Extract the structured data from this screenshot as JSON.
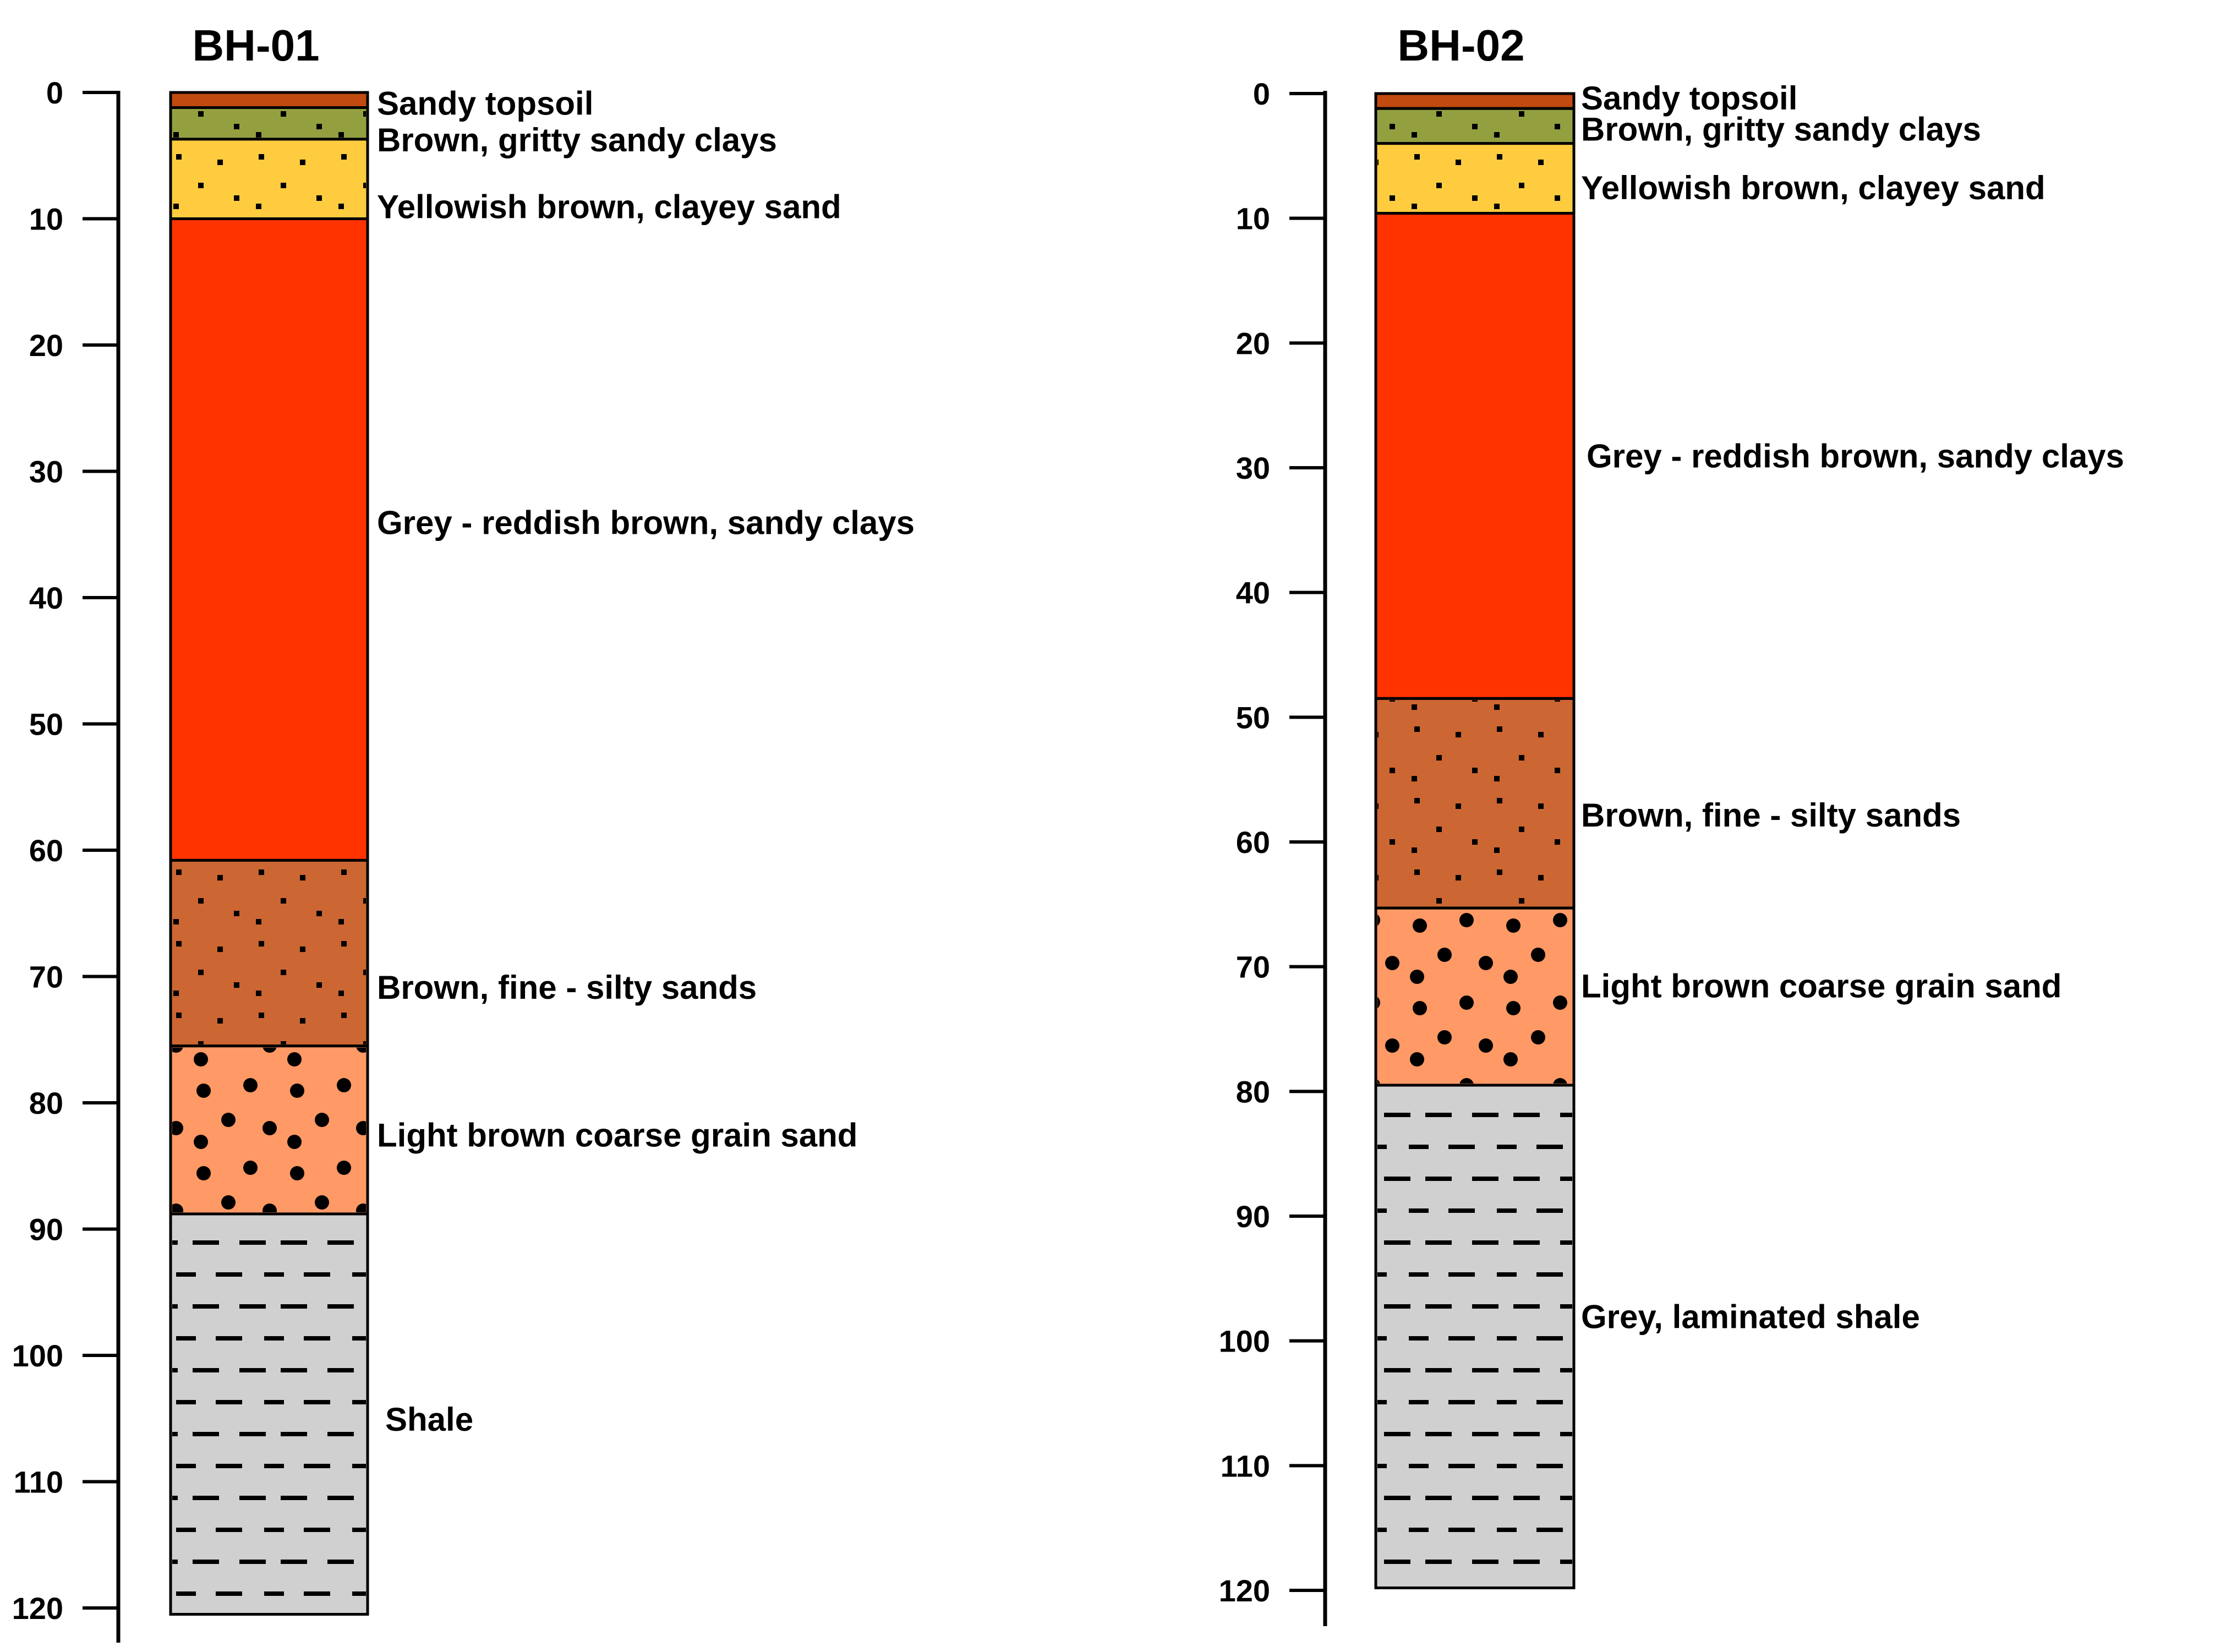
{
  "patterns": {
    "dots": "fine-dots",
    "big_dots": "coarse-dots",
    "dashes": "laminated-dashes"
  },
  "boreholes": [
    {
      "title": "BH-01",
      "depth_ticks": [
        "0",
        "10",
        "20",
        "30",
        "40",
        "50",
        "60",
        "70",
        "80",
        "90",
        "100",
        "110",
        "120"
      ],
      "layers": [
        {
          "description": "Sandy topsoil",
          "top": 0,
          "bottom": 1.2,
          "color": "#c04a10",
          "pattern": "none"
        },
        {
          "description": "Brown, gritty sandy clays",
          "top": 1.2,
          "bottom": 3.7,
          "color": "#94a040",
          "pattern": "dots"
        },
        {
          "description": "Yellowish brown, clayey sand",
          "top": 3.7,
          "bottom": 10.0,
          "color": "#ffcc40",
          "pattern": "dots"
        },
        {
          "description": "Grey - reddish brown, sandy clays",
          "top": 10.0,
          "bottom": 60.8,
          "color": "#ff3300",
          "pattern": "none"
        },
        {
          "description": "Brown, fine - silty sands",
          "top": 60.8,
          "bottom": 75.5,
          "color": "#cc6633",
          "pattern": "dots"
        },
        {
          "description": "Light brown coarse grain sand",
          "top": 75.5,
          "bottom": 88.8,
          "color": "#ff9966",
          "pattern": "big_dots"
        },
        {
          "description": "Shale",
          "top": 88.8,
          "bottom": 120.5,
          "color": "#d0d0d0",
          "pattern": "dashes"
        }
      ]
    },
    {
      "title": "BH-02",
      "depth_ticks": [
        "0",
        "10",
        "20",
        "30",
        "40",
        "50",
        "60",
        "70",
        "80",
        "90",
        "100",
        "110",
        "120"
      ],
      "layers": [
        {
          "description": "Sandy topsoil",
          "top": 0,
          "bottom": 1.2,
          "color": "#c04a10",
          "pattern": "none"
        },
        {
          "description": "Brown, gritty sandy clays",
          "top": 1.2,
          "bottom": 4.0,
          "color": "#94a040",
          "pattern": "dots"
        },
        {
          "description": "Yellowish brown, clayey sand",
          "top": 4.0,
          "bottom": 9.6,
          "color": "#ffcc40",
          "pattern": "dots"
        },
        {
          "description": "Grey - reddish brown, sandy clays",
          "top": 9.6,
          "bottom": 48.5,
          "color": "#ff3300",
          "pattern": "none"
        },
        {
          "description": "Brown, fine - silty sands",
          "top": 48.5,
          "bottom": 65.3,
          "color": "#cc6633",
          "pattern": "dots"
        },
        {
          "description": "Light brown coarse grain sand",
          "top": 65.3,
          "bottom": 79.5,
          "color": "#ff9966",
          "pattern": "big_dots"
        },
        {
          "description": "Grey, laminated shale",
          "top": 79.5,
          "bottom": 119.8,
          "color": "#d0d0d0",
          "pattern": "dashes"
        }
      ]
    }
  ]
}
